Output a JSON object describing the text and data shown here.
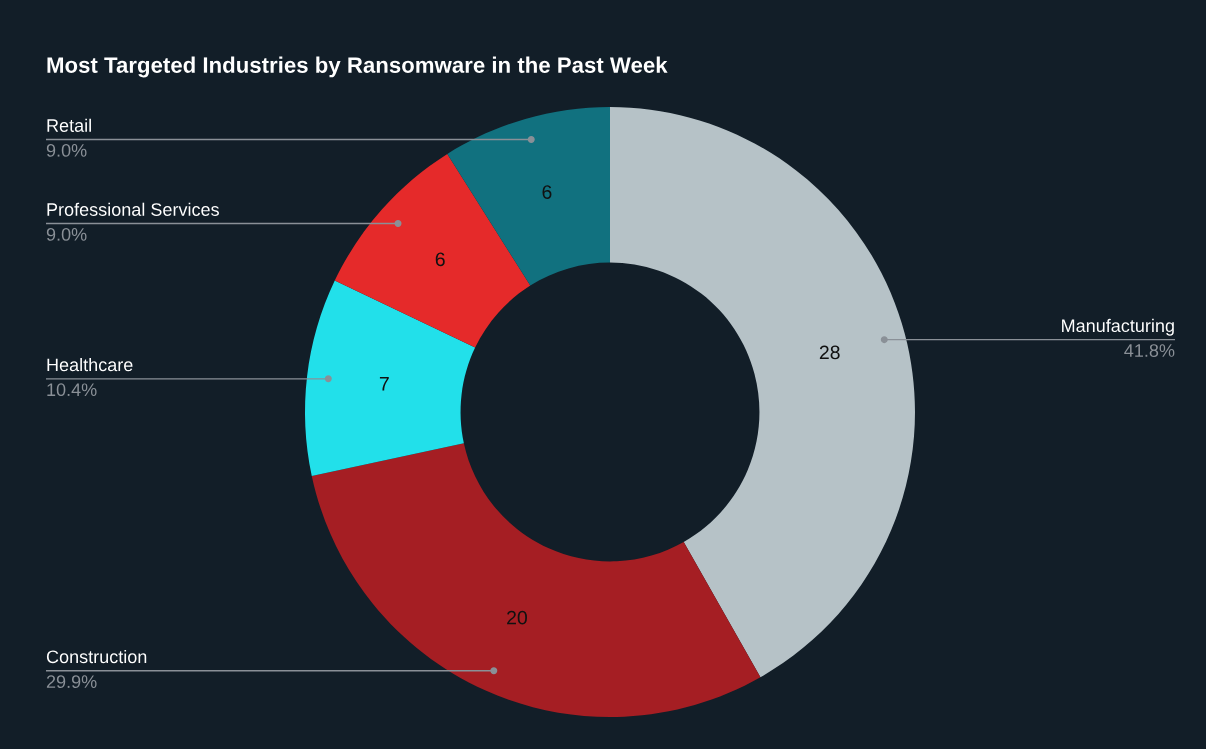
{
  "chart_data": {
    "type": "donut",
    "title": "Most Targeted Industries by Ransomware in the Past Week",
    "categories": [
      "Manufacturing",
      "Construction",
      "Healthcare",
      "Professional Services",
      "Retail"
    ],
    "values": [
      28,
      20,
      7,
      6,
      6
    ],
    "colors": [
      "#b6c2c7",
      "#a51e23",
      "#22e0ea",
      "#e52a2a",
      "#11717f"
    ],
    "data_labels": true,
    "annotations": [
      "41.8%",
      "29.9%",
      "10.4%",
      "9.0%",
      "9.0%"
    ]
  }
}
